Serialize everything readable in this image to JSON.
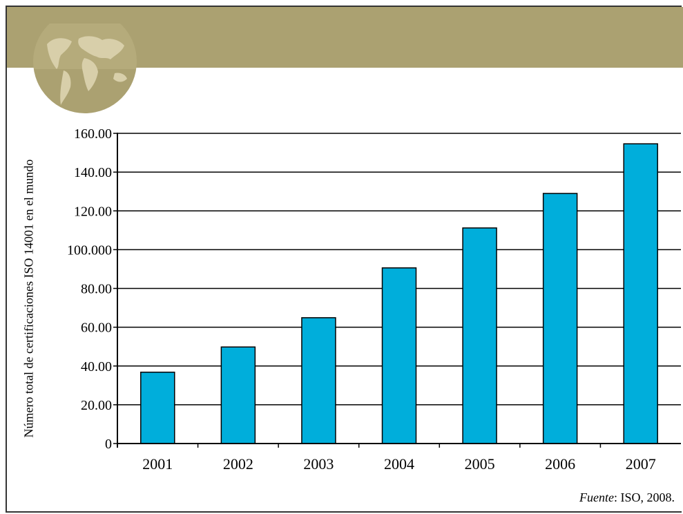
{
  "colors": {
    "banner": "#ABA171",
    "bar": "#00AEDB",
    "globe": "#C7BD93"
  },
  "chart_data": {
    "type": "bar",
    "title": "",
    "xlabel": "",
    "ylabel": "Número total de certificaciones ISO 14001 en el mundo",
    "categories": [
      "2001",
      "2002",
      "2003",
      "2004",
      "2005",
      "2006",
      "2007"
    ],
    "values": [
      36.8,
      49.8,
      64.9,
      90.6,
      111.2,
      129.0,
      154.6
    ],
    "ylim": [
      0,
      160
    ],
    "yticks": [
      0,
      20,
      40,
      60,
      80,
      100,
      120,
      140,
      160
    ],
    "ytick_labels": [
      "0",
      "20.00",
      "40.00",
      "60.00",
      "80.00",
      "100.000",
      "120.00",
      "140.00",
      "160.00"
    ],
    "grid": true,
    "source_prefix": "Fuente",
    "source_text": ": ISO, 2008."
  }
}
